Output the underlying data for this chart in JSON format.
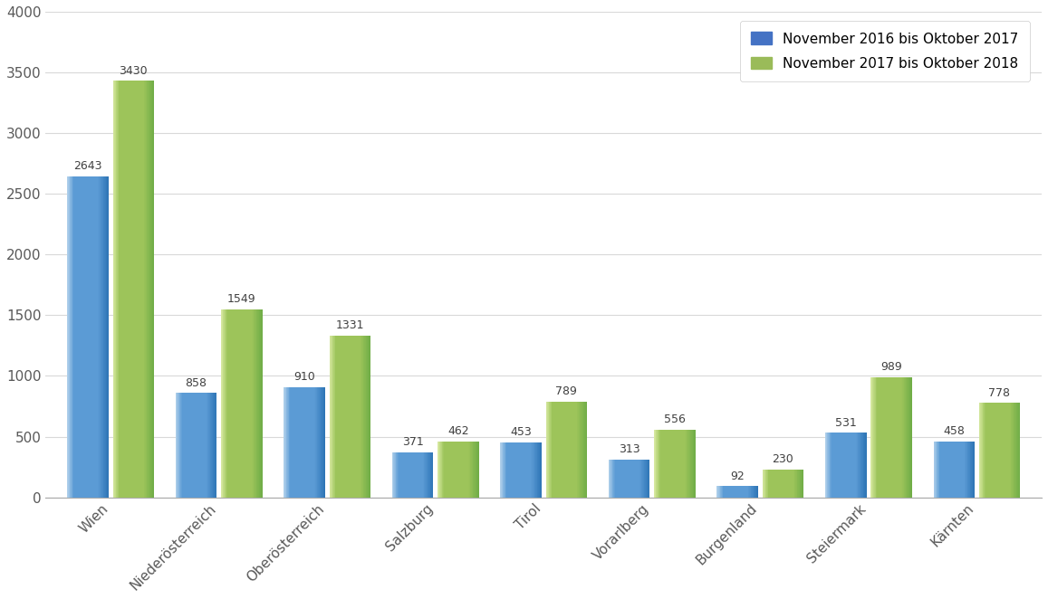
{
  "categories": [
    "Wien",
    "Niederösterreich",
    "Oberösterreich",
    "Salzburg",
    "Tirol",
    "Vorarlberg",
    "Burgenland",
    "Steiermark",
    "Kärnten"
  ],
  "series1_label": "November 2016 bis Oktober 2017",
  "series2_label": "November 2017 bis Oktober 2018",
  "series1_values": [
    2643,
    858,
    910,
    371,
    453,
    313,
    92,
    531,
    458
  ],
  "series2_values": [
    3430,
    1549,
    1331,
    462,
    789,
    556,
    230,
    989,
    778
  ],
  "series1_color_light": "#AECFEA",
  "series1_color_mid": "#5B9BD5",
  "series1_color_dark": "#2E75B6",
  "series2_color_light": "#D6E8A0",
  "series2_color_mid": "#9DC45A",
  "series2_color_dark": "#70AD47",
  "series1_legend_color": "#4472C4",
  "series2_legend_color": "#9ABB59",
  "ylim": [
    0,
    4000
  ],
  "yticks": [
    0,
    500,
    1000,
    1500,
    2000,
    2500,
    3000,
    3500,
    4000
  ],
  "bar_width": 0.38,
  "background_color": "#FFFFFF",
  "grid_color": "#D9D9D9",
  "tick_fontsize": 11,
  "value_label_fontsize": 9,
  "legend_fontsize": 11
}
